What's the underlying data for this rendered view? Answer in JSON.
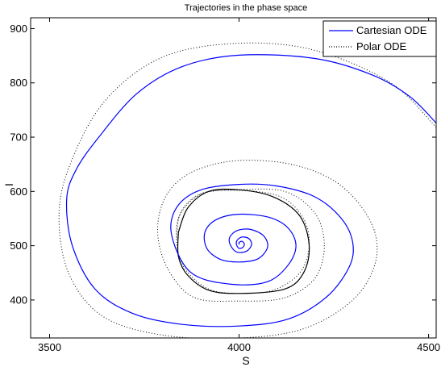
{
  "chart_data": {
    "type": "line",
    "title": "Trajectories in the phase space",
    "xlabel": "S",
    "ylabel": "I",
    "xlim": [
      3450,
      4520
    ],
    "ylim": [
      330,
      920
    ],
    "x_ticks": [
      3500,
      4000,
      4500
    ],
    "y_ticks": [
      400,
      500,
      600,
      700,
      800,
      900
    ],
    "grid": false,
    "legend_position": "top-right",
    "series": [
      {
        "name": "Cartesian ODE",
        "color": "#0000ff",
        "style": "solid",
        "points": [
          [
            4520,
            726
          ],
          [
            4450,
            775
          ],
          [
            4350,
            815
          ],
          [
            4200,
            845
          ],
          [
            4000,
            851
          ],
          [
            3850,
            830
          ],
          [
            3730,
            780
          ],
          [
            3630,
            700
          ],
          [
            3570,
            640
          ],
          [
            3545,
            585
          ],
          [
            3560,
            500
          ],
          [
            3620,
            420
          ],
          [
            3720,
            375
          ],
          [
            3850,
            355
          ],
          [
            4000,
            352
          ],
          [
            4130,
            365
          ],
          [
            4230,
            405
          ],
          [
            4290,
            460
          ],
          [
            4300,
            505
          ],
          [
            4270,
            550
          ],
          [
            4200,
            590
          ],
          [
            4100,
            610
          ],
          [
            4000,
            613
          ],
          [
            3900,
            603
          ],
          [
            3840,
            575
          ],
          [
            3820,
            530
          ],
          [
            3850,
            470
          ],
          [
            3900,
            440
          ],
          [
            4000,
            428
          ],
          [
            4080,
            435
          ],
          [
            4130,
            465
          ],
          [
            4150,
            500
          ],
          [
            4130,
            532
          ],
          [
            4080,
            552
          ],
          [
            4000,
            558
          ],
          [
            3940,
            548
          ],
          [
            3910,
            525
          ],
          [
            3915,
            495
          ],
          [
            3950,
            475
          ],
          [
            4000,
            470
          ],
          [
            4050,
            476
          ],
          [
            4075,
            497
          ],
          [
            4065,
            518
          ],
          [
            4030,
            530
          ],
          [
            3995,
            528
          ],
          [
            3975,
            515
          ],
          [
            3978,
            500
          ],
          [
            3995,
            488
          ],
          [
            4020,
            490
          ],
          [
            4033,
            502
          ],
          [
            4026,
            513
          ],
          [
            4008,
            516
          ],
          [
            3995,
            510
          ],
          [
            3993,
            502
          ],
          [
            4000,
            495
          ],
          [
            4010,
            497
          ],
          [
            4014,
            503
          ],
          [
            4008,
            508
          ],
          [
            4000,
            506
          ],
          [
            4000,
            502
          ]
        ]
      },
      {
        "name": "Polar ODE",
        "color": "#000000",
        "style": "dotted",
        "points": [
          [
            4520,
            718
          ],
          [
            4400,
            800
          ],
          [
            4200,
            860
          ],
          [
            4000,
            873
          ],
          [
            3800,
            848
          ],
          [
            3650,
            770
          ],
          [
            3560,
            660
          ],
          [
            3525,
            560
          ],
          [
            3550,
            450
          ],
          [
            3640,
            370
          ],
          [
            3800,
            335
          ],
          [
            4000,
            330
          ],
          [
            4170,
            347
          ],
          [
            4300,
            400
          ],
          [
            4360,
            470
          ],
          [
            4350,
            540
          ],
          [
            4270,
            610
          ],
          [
            4150,
            648
          ],
          [
            4000,
            657
          ],
          [
            3880,
            637
          ],
          [
            3810,
            595
          ],
          [
            3785,
            530
          ],
          [
            3810,
            460
          ],
          [
            3880,
            405
          ],
          [
            4000,
            398
          ],
          [
            4120,
            404
          ],
          [
            4200,
            440
          ],
          [
            4225,
            500
          ],
          [
            4200,
            560
          ],
          [
            4120,
            600
          ],
          [
            4000,
            603
          ],
          [
            3900,
            595
          ],
          [
            3843,
            555
          ],
          [
            3836,
            500
          ],
          [
            3860,
            455
          ],
          [
            3920,
            420
          ],
          [
            4000,
            412
          ],
          [
            4090,
            418
          ],
          [
            4160,
            450
          ],
          [
            4185,
            500
          ],
          [
            4170,
            550
          ],
          [
            4110,
            590
          ],
          [
            4000,
            602
          ],
          [
            3900,
            596
          ],
          [
            3845,
            560
          ],
          [
            3836,
            510
          ]
        ]
      },
      {
        "name": "",
        "color": "#000000",
        "style": "solid",
        "points": [
          [
            3840,
            525
          ],
          [
            3865,
            570
          ],
          [
            3920,
            600
          ],
          [
            4000,
            603
          ],
          [
            4090,
            590
          ],
          [
            4160,
            555
          ],
          [
            4185,
            500
          ],
          [
            4170,
            450
          ],
          [
            4120,
            420
          ],
          [
            4000,
            412
          ],
          [
            3920,
            418
          ],
          [
            3865,
            445
          ],
          [
            3840,
            480
          ],
          [
            3840,
            525
          ]
        ]
      }
    ]
  }
}
